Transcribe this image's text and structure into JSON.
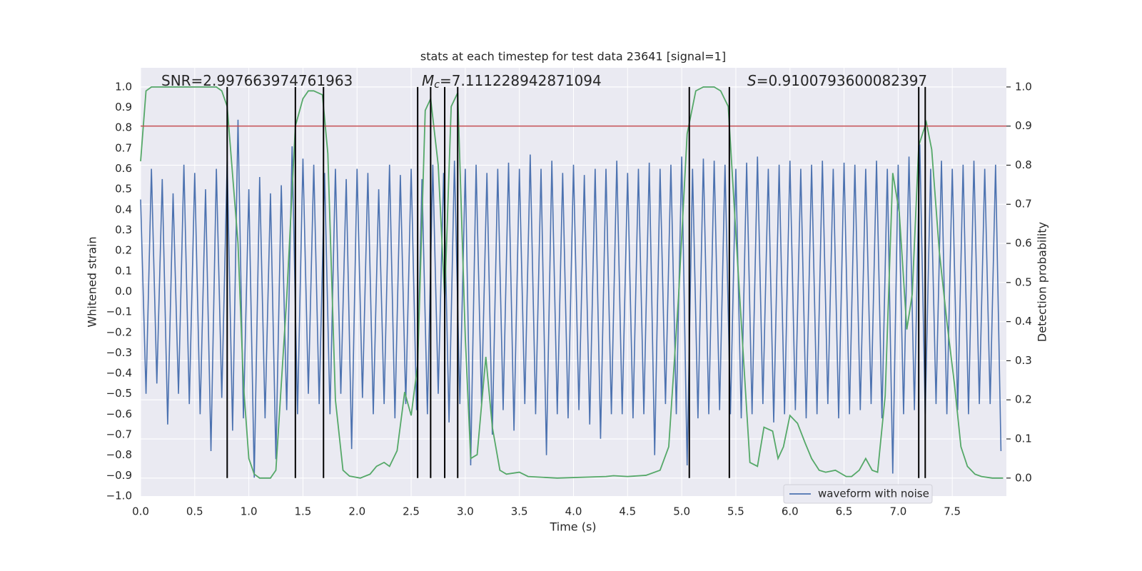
{
  "chart_data": {
    "type": "line",
    "title": "stats at each timestep for test data 23641 [signal=1]",
    "xlabel": "Time (s)",
    "ylabel": "Whitened strain",
    "y2label": "Detection probability",
    "xlim": [
      0,
      8.0
    ],
    "ylim": [
      -1.0,
      1.094
    ],
    "y2lim": [
      -0.046,
      1.049
    ],
    "xticks": [
      {
        "value": 0,
        "label": "0.0"
      },
      0.5,
      {
        "value": 1,
        "label": "1.0"
      },
      1.5,
      {
        "value": 2,
        "label": "2.0"
      },
      2.5,
      {
        "value": 3,
        "label": "3.0"
      },
      3.5,
      {
        "value": 4,
        "label": "4.0"
      },
      4.5,
      {
        "value": 5,
        "label": "5.0"
      },
      5.5,
      {
        "value": 6,
        "label": "6.0"
      },
      6.5,
      {
        "value": 7,
        "label": "7.0"
      },
      7.5
    ],
    "yticks": [
      {
        "value": -1.0,
        "label": "−1.0"
      },
      {
        "value": -0.9,
        "label": "−0.9"
      },
      {
        "value": -0.8,
        "label": "−0.8"
      },
      {
        "value": -0.7,
        "label": "−0.7"
      },
      {
        "value": -0.6,
        "label": "−0.6"
      },
      {
        "value": -0.5,
        "label": "−0.5"
      },
      {
        "value": -0.4,
        "label": "−0.4"
      },
      {
        "value": -0.3,
        "label": "−0.3"
      },
      {
        "value": -0.2,
        "label": "−0.2"
      },
      {
        "value": -0.1,
        "label": "−0.1"
      },
      {
        "value": 0,
        "label": "0.0"
      },
      0.1,
      0.2,
      0.3,
      0.4,
      0.5,
      0.6,
      0.7,
      0.8,
      0.9,
      {
        "value": 1,
        "label": "1.0"
      }
    ],
    "y2ticks": [
      {
        "value": 0,
        "label": "0.0"
      },
      0.1,
      0.2,
      0.3,
      0.4,
      0.5,
      0.6,
      0.7,
      0.8,
      0.9,
      {
        "value": 1,
        "label": "1.0"
      }
    ],
    "grid": true,
    "legend": "lower right",
    "series": [
      {
        "name": "waveform with noise",
        "color": "#4c72b0",
        "x": [
          0,
          0.05,
          0.1,
          0.15,
          0.2,
          0.25,
          0.3,
          0.35,
          0.4,
          0.45,
          0.5,
          0.55,
          0.6,
          0.65,
          0.7,
          0.75,
          0.8,
          0.85,
          0.9,
          0.95,
          1,
          1.05,
          1.1,
          1.15,
          1.2,
          1.25,
          1.3,
          1.35,
          1.4,
          1.45,
          1.5,
          1.55,
          1.6,
          1.65,
          1.7,
          1.75,
          1.8,
          1.85,
          1.9,
          1.95,
          2,
          2.05,
          2.1,
          2.15,
          2.2,
          2.25,
          2.3,
          2.35,
          2.4,
          2.45,
          2.5,
          2.55,
          2.6,
          2.65,
          2.7,
          2.75,
          2.8,
          2.85,
          2.9,
          2.95,
          3,
          3.05,
          3.1,
          3.15,
          3.2,
          3.25,
          3.3,
          3.35,
          3.4,
          3.45,
          3.5,
          3.55,
          3.6,
          3.65,
          3.7,
          3.75,
          3.8,
          3.85,
          3.9,
          3.95,
          4,
          4.05,
          4.1,
          4.15,
          4.2,
          4.25,
          4.3,
          4.35,
          4.4,
          4.45,
          4.5,
          4.55,
          4.6,
          4.65,
          4.7,
          4.75,
          4.8,
          4.85,
          4.9,
          4.95,
          5,
          5.05,
          5.1,
          5.15,
          5.2,
          5.25,
          5.3,
          5.35,
          5.4,
          5.45,
          5.5,
          5.55,
          5.6,
          5.65,
          5.7,
          5.75,
          5.8,
          5.85,
          5.9,
          5.95,
          6,
          6.05,
          6.1,
          6.15,
          6.2,
          6.25,
          6.3,
          6.35,
          6.4,
          6.45,
          6.5,
          6.55,
          6.6,
          6.65,
          6.7,
          6.75,
          6.8,
          6.85,
          6.9,
          6.95,
          7,
          7.05,
          7.1,
          7.15,
          7.2,
          7.25,
          7.3,
          7.35,
          7.4,
          7.45,
          7.5,
          7.55,
          7.6,
          7.65,
          7.7,
          7.75,
          7.8,
          7.85,
          7.9,
          7.95
        ],
        "values": [
          0.45,
          -0.5,
          0.6,
          -0.45,
          0.55,
          -0.65,
          0.48,
          -0.5,
          0.62,
          -0.55,
          0.58,
          -0.6,
          0.5,
          -0.78,
          0.6,
          -0.52,
          0.64,
          -0.68,
          0.84,
          -0.62,
          0.5,
          -0.91,
          0.56,
          -0.62,
          0.48,
          -0.82,
          0.52,
          -0.58,
          0.71,
          -0.6,
          0.65,
          -0.5,
          0.62,
          -0.55,
          0.58,
          -0.6,
          0.6,
          -0.5,
          0.55,
          -0.77,
          0.6,
          -0.52,
          0.58,
          -0.6,
          0.5,
          -0.55,
          0.62,
          -0.62,
          0.57,
          -0.55,
          0.6,
          -0.58,
          0.55,
          -0.6,
          0.62,
          -0.5,
          0.58,
          -0.64,
          0.64,
          -0.55,
          0.6,
          -0.85,
          0.62,
          -0.55,
          0.58,
          -0.7,
          0.6,
          -0.58,
          0.63,
          -0.68,
          0.6,
          -0.55,
          0.67,
          -0.6,
          0.6,
          -0.8,
          0.64,
          -0.6,
          0.58,
          -0.62,
          0.62,
          -0.58,
          0.57,
          -0.65,
          0.6,
          -0.72,
          0.6,
          -0.6,
          0.64,
          -0.6,
          0.58,
          -0.62,
          0.6,
          -0.6,
          0.63,
          -0.8,
          0.6,
          -0.55,
          0.62,
          -0.6,
          0.66,
          -0.85,
          0.6,
          -0.62,
          0.65,
          -0.6,
          0.64,
          -0.58,
          0.62,
          -0.6,
          0.6,
          -0.62,
          0.63,
          -0.6,
          0.66,
          -0.55,
          0.6,
          -0.64,
          0.62,
          -0.6,
          0.64,
          -0.58,
          0.6,
          -0.62,
          0.62,
          -0.6,
          0.64,
          -0.55,
          0.6,
          -0.62,
          0.63,
          -0.6,
          0.62,
          -0.58,
          0.6,
          -0.55,
          0.64,
          -0.62,
          0.6,
          -0.89,
          0.62,
          -0.6,
          0.66,
          -0.58,
          0.72,
          -0.6,
          0.6,
          -0.55,
          0.64,
          -0.6,
          0.6,
          -0.58,
          0.62,
          -0.6,
          0.64,
          -0.55,
          0.6,
          -0.55,
          0.62,
          -0.78
        ]
      }
    ],
    "probability": {
      "color": "#55a868",
      "axis": "y2",
      "x": [
        0,
        0.05,
        0.1,
        0.65,
        0.7,
        0.75,
        0.8,
        0.9,
        0.95,
        1.0,
        1.05,
        1.1,
        1.2,
        1.25,
        1.35,
        1.43,
        1.5,
        1.55,
        1.6,
        1.68,
        1.73,
        1.8,
        1.87,
        1.93,
        2.03,
        2.12,
        2.18,
        2.25,
        2.3,
        2.37,
        2.44,
        2.5,
        2.56,
        2.63,
        2.68,
        2.75,
        2.81,
        2.87,
        2.93,
        3.0,
        3.05,
        3.11,
        3.19,
        3.25,
        3.32,
        3.38,
        3.5,
        3.58,
        3.85,
        4.3,
        4.37,
        4.5,
        4.67,
        4.8,
        4.88,
        4.97,
        5.05,
        5.13,
        5.2,
        5.3,
        5.36,
        5.43,
        5.51,
        5.63,
        5.7,
        5.76,
        5.84,
        5.89,
        5.94,
        6.0,
        6.07,
        6.14,
        6.2,
        6.27,
        6.33,
        6.42,
        6.52,
        6.57,
        6.64,
        6.7,
        6.76,
        6.81,
        6.88,
        6.95,
        7.01,
        7.08,
        7.13,
        7.19,
        7.26,
        7.31,
        7.38,
        7.45,
        7.52,
        7.58,
        7.64,
        7.71,
        7.77,
        7.87,
        7.97
      ],
      "values": [
        0.81,
        0.99,
        1.0,
        1.0,
        1.0,
        0.99,
        0.95,
        0.6,
        0.24,
        0.05,
        0.01,
        0,
        0,
        0.02,
        0.46,
        0.9,
        0.97,
        0.99,
        0.99,
        0.98,
        0.83,
        0.2,
        0.02,
        0.005,
        0,
        0.01,
        0.03,
        0.04,
        0.03,
        0.07,
        0.22,
        0.16,
        0.29,
        0.94,
        0.97,
        0.8,
        0.46,
        0.95,
        0.985,
        0.36,
        0.05,
        0.06,
        0.31,
        0.13,
        0.02,
        0.01,
        0.015,
        0.004,
        0,
        0.004,
        0.006,
        0.004,
        0.007,
        0.02,
        0.08,
        0.46,
        0.88,
        0.99,
        1.0,
        1.0,
        0.99,
        0.95,
        0.58,
        0.04,
        0.03,
        0.13,
        0.12,
        0.05,
        0.08,
        0.16,
        0.14,
        0.09,
        0.05,
        0.02,
        0.015,
        0.02,
        0.004,
        0.004,
        0.02,
        0.05,
        0.02,
        0.015,
        0.21,
        0.78,
        0.68,
        0.38,
        0.47,
        0.85,
        0.91,
        0.84,
        0.58,
        0.4,
        0.24,
        0.08,
        0.03,
        0.01,
        0.004,
        0,
        0
      ]
    },
    "threshold": {
      "color": "#c44e52",
      "axis": "y2",
      "value": 0.9
    },
    "detections": {
      "color": "#000000",
      "axis": "y2",
      "x": [
        0.8,
        1.43,
        1.69,
        2.56,
        2.68,
        2.81,
        2.93,
        5.07,
        5.44,
        7.19,
        7.25
      ],
      "span": [
        0,
        1
      ]
    },
    "annotations": [
      {
        "text": "SNR=2.997663974761963"
      },
      {
        "symbol": "M",
        "subscript": "c",
        "text": "=7.111228942871094"
      },
      {
        "symbol": "S",
        "text": "=0.9100793600082397"
      }
    ]
  }
}
